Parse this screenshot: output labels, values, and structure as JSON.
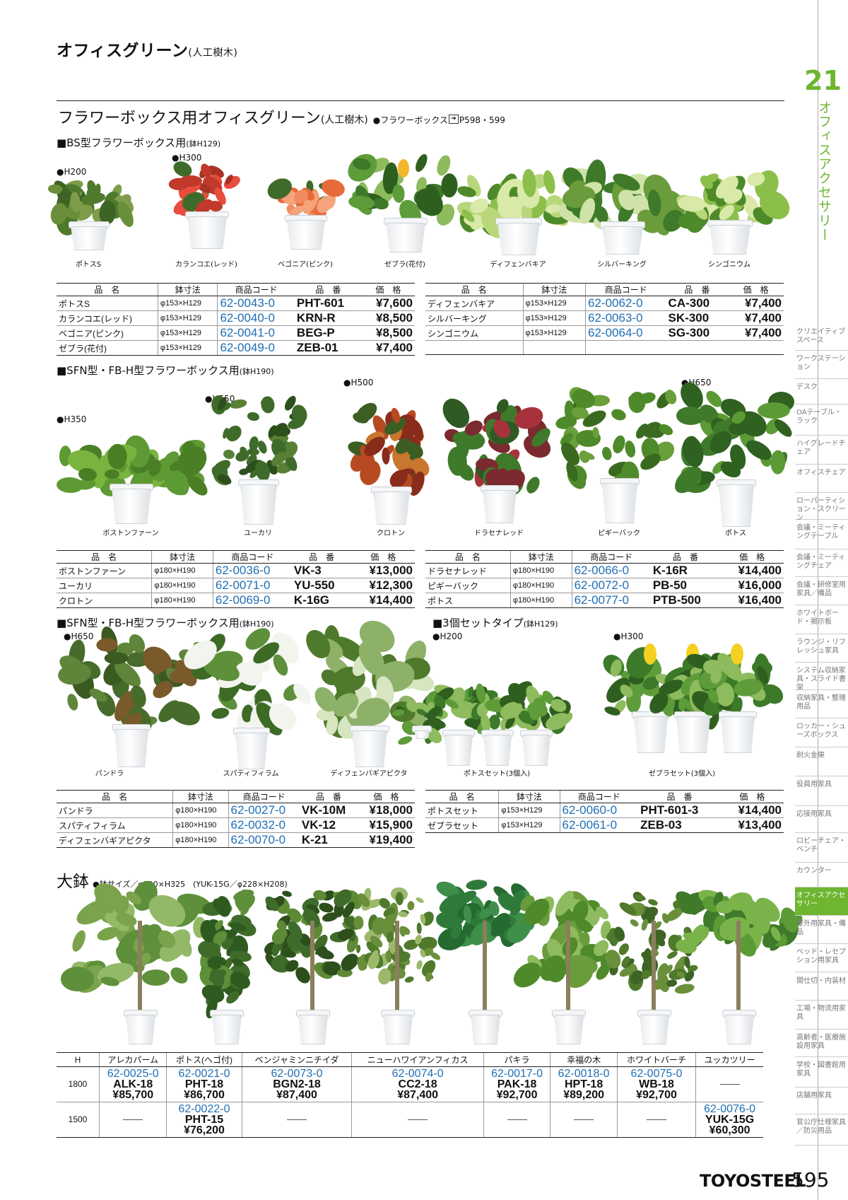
{
  "page_title": {
    "main": "オフィスグリーン",
    "sub": "(人工樹木)"
  },
  "chapter": {
    "number": "21",
    "title": "オフィスアクセサリー"
  },
  "section": {
    "title": "フラワーボックス用オフィスグリーン",
    "sub": "(人工樹木)",
    "ref_label": "●フラワーボックス",
    "ref_pages": "P598・599"
  },
  "table_headers": {
    "name": "品　名",
    "size": "鉢寸法",
    "code": "商品コード",
    "pn": "品　番",
    "price": "価　格"
  },
  "bs": {
    "heading": "■BS型フラワーボックス用",
    "heading_sub": "(鉢H129)",
    "h200": "●H200",
    "h300": "●H300",
    "captions": [
      "ポトスS",
      "カランコエ(レッド)",
      "ベゴニア(ピンク)",
      "ゼブラ(花付)",
      "ディフェンバキア",
      "シルバーキング",
      "シンゴニウム"
    ],
    "left_rows": [
      {
        "name": "ポトスS",
        "size": "φ153×H129",
        "code": "62-0043-0",
        "pn": "PHT-601",
        "price": "¥7,600"
      },
      {
        "name": "カランコエ(レッド)",
        "size": "φ153×H129",
        "code": "62-0040-0",
        "pn": "KRN-R",
        "price": "¥8,500"
      },
      {
        "name": "ベゴニア(ピンク)",
        "size": "φ153×H129",
        "code": "62-0041-0",
        "pn": "BEG-P",
        "price": "¥8,500"
      },
      {
        "name": "ゼブラ(花付)",
        "size": "φ153×H129",
        "code": "62-0049-0",
        "pn": "ZEB-01",
        "price": "¥7,400"
      }
    ],
    "right_rows": [
      {
        "name": "ディフェンバキア",
        "size": "φ153×H129",
        "code": "62-0062-0",
        "pn": "CA-300",
        "price": "¥7,400"
      },
      {
        "name": "シルバーキング",
        "size": "φ153×H129",
        "code": "62-0063-0",
        "pn": "SK-300",
        "price": "¥7,400"
      },
      {
        "name": "シンゴニウム",
        "size": "φ153×H129",
        "code": "62-0064-0",
        "pn": "SG-300",
        "price": "¥7,400"
      }
    ]
  },
  "sfn1": {
    "heading": "■SFN型・FB-H型フラワーボックス用",
    "heading_sub": "(鉢H190)",
    "h350": "●H350",
    "h550": "●H550",
    "h500": "●H500",
    "h650": "●H650",
    "captions": [
      "ボストンファーン",
      "ユーカリ",
      "クロトン",
      "ドラセナレッド",
      "ピギーバック",
      "ポトス"
    ],
    "left_rows": [
      {
        "name": "ボストンファーン",
        "size": "φ180×H190",
        "code": "62-0036-0",
        "pn": "VK-3",
        "price": "¥13,000"
      },
      {
        "name": "ユーカリ",
        "size": "φ180×H190",
        "code": "62-0071-0",
        "pn": "YU-550",
        "price": "¥12,300"
      },
      {
        "name": "クロトン",
        "size": "φ180×H190",
        "code": "62-0069-0",
        "pn": "K-16G",
        "price": "¥14,400"
      }
    ],
    "right_rows": [
      {
        "name": "ドラセナレッド",
        "size": "φ180×H190",
        "code": "62-0066-0",
        "pn": "K-16R",
        "price": "¥14,400"
      },
      {
        "name": "ピギーバック",
        "size": "φ180×H190",
        "code": "62-0072-0",
        "pn": "PB-50",
        "price": "¥16,000"
      },
      {
        "name": "ポトス",
        "size": "φ180×H190",
        "code": "62-0077-0",
        "pn": "PTB-500",
        "price": "¥16,400"
      }
    ]
  },
  "sfn2": {
    "heading": "■SFN型・FB-H型フラワーボックス用",
    "heading_sub": "(鉢H190)",
    "h650": "●H650",
    "captions": [
      "パンドラ",
      "スパティフィラム",
      "ディフェンバギアピクタ"
    ],
    "rows": [
      {
        "name": "パンドラ",
        "size": "φ180×H190",
        "code": "62-0027-0",
        "pn": "VK-10M",
        "price": "¥18,000"
      },
      {
        "name": "スパティフィラム",
        "size": "φ180×H190",
        "code": "62-0032-0",
        "pn": "VK-12",
        "price": "¥15,900"
      },
      {
        "name": "ディフェンバギアピクタ",
        "size": "φ180×H190",
        "code": "62-0070-0",
        "pn": "K-21",
        "price": "¥19,400"
      }
    ]
  },
  "set3": {
    "heading": "■3個セットタイプ",
    "heading_sub": "(鉢H129)",
    "h200": "●H200",
    "h300": "●H300",
    "captions": [
      "ポトスセット(3個入)",
      "ゼブラセット(3個入)"
    ],
    "rows": [
      {
        "name": "ポトスセット",
        "size": "φ153×H129",
        "code": "62-0060-0",
        "pn": "PHT-601-3",
        "price": "¥14,400"
      },
      {
        "name": "ゼブラセット",
        "size": "φ153×H129",
        "code": "62-0061-0",
        "pn": "ZEB-03",
        "price": "¥13,400"
      }
    ]
  },
  "large": {
    "heading": "大鉢",
    "heading_note": "●鉢サイズ／φ320×H325　(YUK-15G／φ228×H208)",
    "h_label": "H",
    "columns": [
      "アレカパーム",
      "ポトス(ヘゴ付)",
      "ベンジャミンニチイダ",
      "ニューハワイアンフィカス",
      "パキラ",
      "幸福の木",
      "ホワイトバーチ",
      "ユッカツリー"
    ],
    "row1800": {
      "h": "1800",
      "cells": [
        {
          "code": "62-0025-0",
          "pn": "ALK-18",
          "price": "¥85,700"
        },
        {
          "code": "62-0021-0",
          "pn": "PHT-18",
          "price": "¥86,700"
        },
        {
          "code": "62-0073-0",
          "pn": "BGN2-18",
          "price": "¥87,400"
        },
        {
          "code": "62-0074-0",
          "pn": "CC2-18",
          "price": "¥87,400"
        },
        {
          "code": "62-0017-0",
          "pn": "PAK-18",
          "price": "¥92,700"
        },
        {
          "code": "62-0018-0",
          "pn": "HPT-18",
          "price": "¥89,200"
        },
        {
          "code": "62-0075-0",
          "pn": "WB-18",
          "price": "¥92,700"
        }
      ]
    },
    "row1500": {
      "h": "1500",
      "potos": {
        "code": "62-0022-0",
        "pn": "PHT-15",
        "price": "¥76,200"
      },
      "yucca": {
        "code": "62-0076-0",
        "pn": "YUK-15G",
        "price": "¥60,300"
      }
    }
  },
  "sidebar": [
    "クリエイティブスペース",
    "ワークステーション",
    "デスク",
    "OAテーブル・ラック",
    "ハイグレードチェア",
    "オフィスチェア",
    "ローパーティション・スクリーン",
    "会議・ミーティングテーブル",
    "会議・ミーティングチェア",
    "会議・研修室用家具／備品",
    "ホワイトボード・掲示板",
    "ラウンジ・リフレッシュ家具",
    "システム収納家具・スライド書架",
    "収納家具・整理用品",
    "ロッカー・シューズボックス",
    "耐火金庫",
    "役員用家具",
    "応接用家具",
    "ロビーチェア・ベンチ",
    "カウンター",
    "オフィスアクセサリー",
    "屋外用家具・備品",
    "ベッド・レセプション用家具",
    "間仕切・内装材",
    "工場・物流用家具",
    "高齢者・医療施設用家具",
    "学校・図書館用家具",
    "店舗用家具",
    "官公庁仕様家具／防災用品"
  ],
  "footer": {
    "brand": "TOYOSTEEL",
    "page": "595"
  },
  "colors": {
    "accent_green": "#6eb530",
    "code_blue": "#1f6fb5"
  }
}
